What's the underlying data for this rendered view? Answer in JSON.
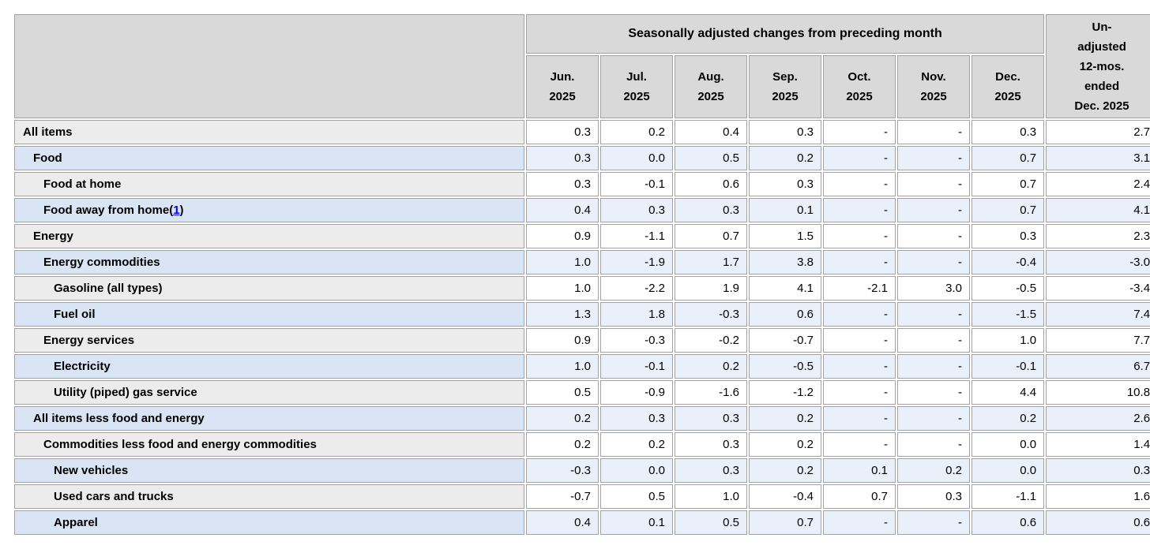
{
  "header": {
    "group_title": "Seasonally adjusted changes from preceding month",
    "unadjusted_title": "Un-\nadjusted\n12-mos.\nended\nDec. 2025",
    "months": [
      "Jun.\n2025",
      "Jul.\n2025",
      "Aug.\n2025",
      "Sep.\n2025",
      "Oct.\n2025",
      "Nov.\n2025",
      "Dec.\n2025"
    ]
  },
  "colors": {
    "header_bg": "#d9d9d9",
    "label_bg_plain": "#ececec",
    "label_bg_alt": "#d9e5f5",
    "data_bg_plain": "#ffffff",
    "data_bg_alt": "#e9f0fa",
    "border": "#a2a2a2",
    "footnote_link": "#0000ee"
  },
  "chart_data": {
    "type": "table",
    "title": "Seasonally adjusted changes from preceding month",
    "columns": [
      "Jun. 2025",
      "Jul. 2025",
      "Aug. 2025",
      "Sep. 2025",
      "Oct. 2025",
      "Nov. 2025",
      "Dec. 2025",
      "Un-adjusted 12-mos. ended Dec. 2025"
    ],
    "rows": [
      {
        "label": "All items",
        "indent": 0,
        "footnote": null,
        "values": [
          "0.3",
          "0.2",
          "0.4",
          "0.3",
          "-",
          "-",
          "0.3",
          "2.7"
        ]
      },
      {
        "label": "Food",
        "indent": 1,
        "footnote": null,
        "values": [
          "0.3",
          "0.0",
          "0.5",
          "0.2",
          "-",
          "-",
          "0.7",
          "3.1"
        ]
      },
      {
        "label": "Food at home",
        "indent": 2,
        "footnote": null,
        "values": [
          "0.3",
          "-0.1",
          "0.6",
          "0.3",
          "-",
          "-",
          "0.7",
          "2.4"
        ]
      },
      {
        "label": "Food away from home",
        "indent": 2,
        "footnote": "1",
        "values": [
          "0.4",
          "0.3",
          "0.3",
          "0.1",
          "-",
          "-",
          "0.7",
          "4.1"
        ]
      },
      {
        "label": "Energy",
        "indent": 1,
        "footnote": null,
        "values": [
          "0.9",
          "-1.1",
          "0.7",
          "1.5",
          "-",
          "-",
          "0.3",
          "2.3"
        ]
      },
      {
        "label": "Energy commodities",
        "indent": 2,
        "footnote": null,
        "values": [
          "1.0",
          "-1.9",
          "1.7",
          "3.8",
          "-",
          "-",
          "-0.4",
          "-3.0"
        ]
      },
      {
        "label": "Gasoline (all types)",
        "indent": 3,
        "footnote": null,
        "values": [
          "1.0",
          "-2.2",
          "1.9",
          "4.1",
          "-2.1",
          "3.0",
          "-0.5",
          "-3.4"
        ]
      },
      {
        "label": "Fuel oil",
        "indent": 3,
        "footnote": null,
        "values": [
          "1.3",
          "1.8",
          "-0.3",
          "0.6",
          "-",
          "-",
          "-1.5",
          "7.4"
        ]
      },
      {
        "label": "Energy services",
        "indent": 2,
        "footnote": null,
        "values": [
          "0.9",
          "-0.3",
          "-0.2",
          "-0.7",
          "-",
          "-",
          "1.0",
          "7.7"
        ]
      },
      {
        "label": "Electricity",
        "indent": 3,
        "footnote": null,
        "values": [
          "1.0",
          "-0.1",
          "0.2",
          "-0.5",
          "-",
          "-",
          "-0.1",
          "6.7"
        ]
      },
      {
        "label": "Utility (piped) gas service",
        "indent": 3,
        "footnote": null,
        "values": [
          "0.5",
          "-0.9",
          "-1.6",
          "-1.2",
          "-",
          "-",
          "4.4",
          "10.8"
        ]
      },
      {
        "label": "All items less food and energy",
        "indent": 1,
        "footnote": null,
        "values": [
          "0.2",
          "0.3",
          "0.3",
          "0.2",
          "-",
          "-",
          "0.2",
          "2.6"
        ]
      },
      {
        "label": "Commodities less food and energy commodities",
        "indent": 2,
        "footnote": null,
        "values": [
          "0.2",
          "0.2",
          "0.3",
          "0.2",
          "-",
          "-",
          "0.0",
          "1.4"
        ]
      },
      {
        "label": "New vehicles",
        "indent": 3,
        "footnote": null,
        "values": [
          "-0.3",
          "0.0",
          "0.3",
          "0.2",
          "0.1",
          "0.2",
          "0.0",
          "0.3"
        ]
      },
      {
        "label": "Used cars and trucks",
        "indent": 3,
        "footnote": null,
        "values": [
          "-0.7",
          "0.5",
          "1.0",
          "-0.4",
          "0.7",
          "0.3",
          "-1.1",
          "1.6"
        ]
      },
      {
        "label": "Apparel",
        "indent": 3,
        "footnote": null,
        "values": [
          "0.4",
          "0.1",
          "0.5",
          "0.7",
          "-",
          "-",
          "0.6",
          "0.6"
        ]
      }
    ]
  }
}
